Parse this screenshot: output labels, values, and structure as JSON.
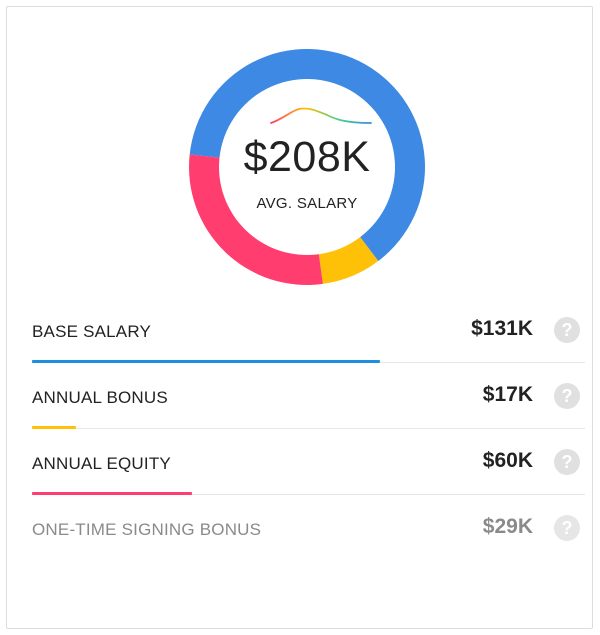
{
  "summary": {
    "amount": "$208K",
    "label": "AVG. SALARY"
  },
  "chart_data": {
    "type": "pie",
    "categories": [
      "BASE SALARY",
      "ANNUAL BONUS",
      "ANNUAL EQUITY",
      "ONE-TIME SIGNING BONUS"
    ],
    "values": [
      131,
      17,
      60,
      29
    ],
    "colors": [
      "#3d89e3",
      "#ffc107",
      "#ff3d6f",
      "#e6e6e6"
    ],
    "visible_segments": [
      "BASE SALARY",
      "ANNUAL BONUS",
      "ANNUAL EQUITY"
    ],
    "style": "donut"
  },
  "components": [
    {
      "label": "BASE SALARY",
      "value": "$131K",
      "amount": 131,
      "color": "#1e8fdc",
      "bar_fraction": 0.63,
      "muted": false
    },
    {
      "label": "ANNUAL BONUS",
      "value": "$17K",
      "amount": 17,
      "color": "#ffc107",
      "bar_fraction": 0.08,
      "muted": false
    },
    {
      "label": "ANNUAL EQUITY",
      "value": "$60K",
      "amount": 60,
      "color": "#ff3d6f",
      "bar_fraction": 0.29,
      "muted": false
    },
    {
      "label": "ONE-TIME SIGNING BONUS",
      "value": "$29K",
      "amount": 29,
      "color": "#e6e6e6",
      "bar_fraction": 0,
      "muted": true
    }
  ],
  "icons": {
    "help": "help-circle-icon"
  }
}
